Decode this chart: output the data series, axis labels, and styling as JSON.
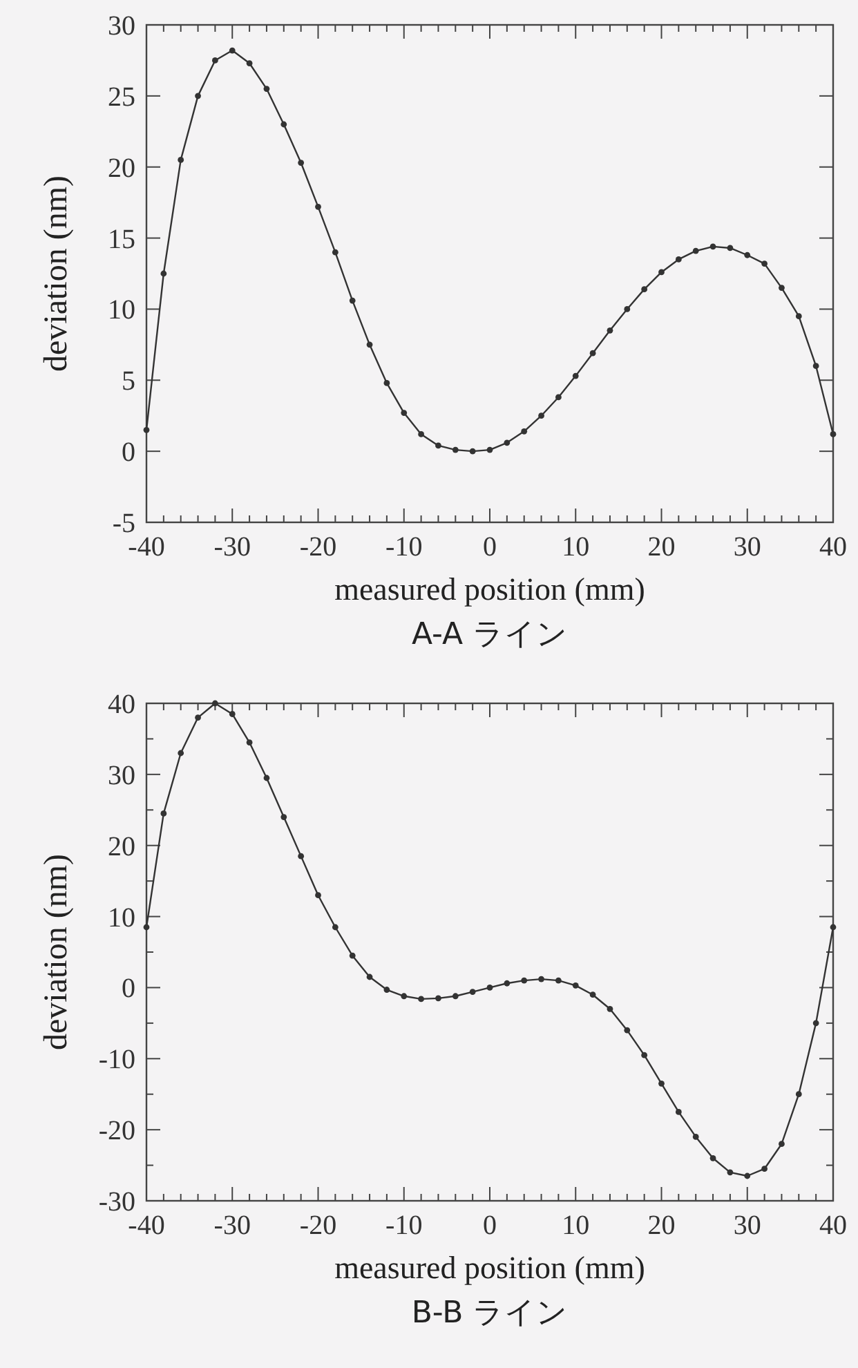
{
  "chart_data": [
    {
      "type": "line",
      "title": "A-A ライン",
      "xlabel": "measured position (mm)",
      "ylabel": "deviation (nm)",
      "marker": "circle",
      "line_style": "solid",
      "x": [
        -40,
        -38,
        -36,
        -34,
        -32,
        -30,
        -28,
        -26,
        -24,
        -22,
        -20,
        -18,
        -16,
        -14,
        -12,
        -10,
        -8,
        -6,
        -4,
        -2,
        0,
        2,
        4,
        6,
        8,
        10,
        12,
        14,
        16,
        18,
        20,
        22,
        24,
        26,
        28,
        30,
        32,
        34,
        36,
        38,
        40
      ],
      "series": [
        {
          "color": "#333333",
          "values": [
            1.5,
            12.5,
            20.5,
            25,
            27.5,
            28.2,
            27.3,
            25.5,
            23,
            20.3,
            17.2,
            14,
            10.6,
            7.5,
            4.8,
            2.7,
            1.2,
            0.4,
            0.1,
            0,
            0.1,
            0.6,
            1.4,
            2.5,
            3.8,
            5.3,
            6.9,
            8.5,
            10,
            11.4,
            12.6,
            13.5,
            14.1,
            14.4,
            14.3,
            13.8,
            13.2,
            11.5,
            9.5,
            6,
            1.2
          ]
        }
      ],
      "xlim": [
        -40,
        40
      ],
      "ylim": [
        -5,
        30
      ],
      "xticks": [
        -40,
        {
          "value": -38,
          "label": null
        },
        {
          "value": -36,
          "label": null
        },
        {
          "value": -34,
          "label": null
        },
        {
          "value": -32,
          "label": null
        },
        -30,
        {
          "value": -28,
          "label": null
        },
        {
          "value": -26,
          "label": null
        },
        {
          "value": -24,
          "label": null
        },
        {
          "value": -22,
          "label": null
        },
        -20,
        {
          "value": -18,
          "label": null
        },
        {
          "value": -16,
          "label": null
        },
        {
          "value": -14,
          "label": null
        },
        {
          "value": -12,
          "label": null
        },
        -10,
        {
          "value": -8,
          "label": null
        },
        {
          "value": -6,
          "label": null
        },
        {
          "value": -4,
          "label": null
        },
        {
          "value": -2,
          "label": null
        },
        0,
        {
          "value": 2,
          "label": null
        },
        {
          "value": 4,
          "label": null
        },
        {
          "value": 6,
          "label": null
        },
        {
          "value": 8,
          "label": null
        },
        10,
        {
          "value": 12,
          "label": null
        },
        {
          "value": 14,
          "label": null
        },
        {
          "value": 16,
          "label": null
        },
        {
          "value": 18,
          "label": null
        },
        20,
        {
          "value": 22,
          "label": null
        },
        {
          "value": 24,
          "label": null
        },
        {
          "value": 26,
          "label": null
        },
        {
          "value": 28,
          "label": null
        },
        30,
        {
          "value": 32,
          "label": null
        },
        {
          "value": 34,
          "label": null
        },
        {
          "value": 36,
          "label": null
        },
        {
          "value": 38,
          "label": null
        },
        40
      ],
      "yticks": [
        -5,
        0,
        5,
        10,
        15,
        20,
        25,
        30
      ]
    },
    {
      "type": "line",
      "title": "B-B ライン",
      "xlabel": "measured position (mm)",
      "ylabel": "deviation (nm)",
      "marker": "circle",
      "line_style": "solid",
      "x": [
        -40,
        -38,
        -36,
        -34,
        -32,
        -30,
        -28,
        -26,
        -24,
        -22,
        -20,
        -18,
        -16,
        -14,
        -12,
        -10,
        -8,
        -6,
        -4,
        -2,
        0,
        2,
        4,
        6,
        8,
        10,
        12,
        14,
        16,
        18,
        20,
        22,
        24,
        26,
        28,
        30,
        32,
        34,
        36,
        38,
        40
      ],
      "series": [
        {
          "color": "#333333",
          "values": [
            8.5,
            24.5,
            33,
            38,
            40,
            38.5,
            34.5,
            29.5,
            24,
            18.5,
            13,
            8.5,
            4.5,
            1.5,
            -0.3,
            -1.2,
            -1.6,
            -1.5,
            -1.2,
            -0.6,
            0,
            0.6,
            1,
            1.2,
            1,
            0.3,
            -1,
            -3,
            -6,
            -9.5,
            -13.5,
            -17.5,
            -21,
            -24,
            -26,
            -26.5,
            -25.5,
            -22,
            -15,
            -5,
            8.5
          ]
        }
      ],
      "xlim": [
        -40,
        40
      ],
      "ylim": [
        -30,
        40
      ],
      "xticks": [
        -40,
        {
          "value": -38,
          "label": null
        },
        {
          "value": -36,
          "label": null
        },
        {
          "value": -34,
          "label": null
        },
        {
          "value": -32,
          "label": null
        },
        -30,
        {
          "value": -28,
          "label": null
        },
        {
          "value": -26,
          "label": null
        },
        {
          "value": -24,
          "label": null
        },
        {
          "value": -22,
          "label": null
        },
        -20,
        {
          "value": -18,
          "label": null
        },
        {
          "value": -16,
          "label": null
        },
        {
          "value": -14,
          "label": null
        },
        {
          "value": -12,
          "label": null
        },
        -10,
        {
          "value": -8,
          "label": null
        },
        {
          "value": -6,
          "label": null
        },
        {
          "value": -4,
          "label": null
        },
        {
          "value": -2,
          "label": null
        },
        0,
        {
          "value": 2,
          "label": null
        },
        {
          "value": 4,
          "label": null
        },
        {
          "value": 6,
          "label": null
        },
        {
          "value": 8,
          "label": null
        },
        10,
        {
          "value": 12,
          "label": null
        },
        {
          "value": 14,
          "label": null
        },
        {
          "value": 16,
          "label": null
        },
        {
          "value": 18,
          "label": null
        },
        20,
        {
          "value": 22,
          "label": null
        },
        {
          "value": 24,
          "label": null
        },
        {
          "value": 26,
          "label": null
        },
        {
          "value": 28,
          "label": null
        },
        30,
        {
          "value": 32,
          "label": null
        },
        {
          "value": 34,
          "label": null
        },
        {
          "value": 36,
          "label": null
        },
        {
          "value": 38,
          "label": null
        },
        40
      ],
      "yticks": [
        -30,
        {
          "value": -25,
          "label": null
        },
        -20,
        {
          "value": -15,
          "label": null
        },
        -10,
        {
          "value": -5,
          "label": null
        },
        0,
        {
          "value": 5,
          "label": null
        },
        10,
        {
          "value": 15,
          "label": null
        },
        20,
        {
          "value": 25,
          "label": null
        },
        30,
        {
          "value": 35,
          "label": null
        },
        40
      ]
    }
  ]
}
